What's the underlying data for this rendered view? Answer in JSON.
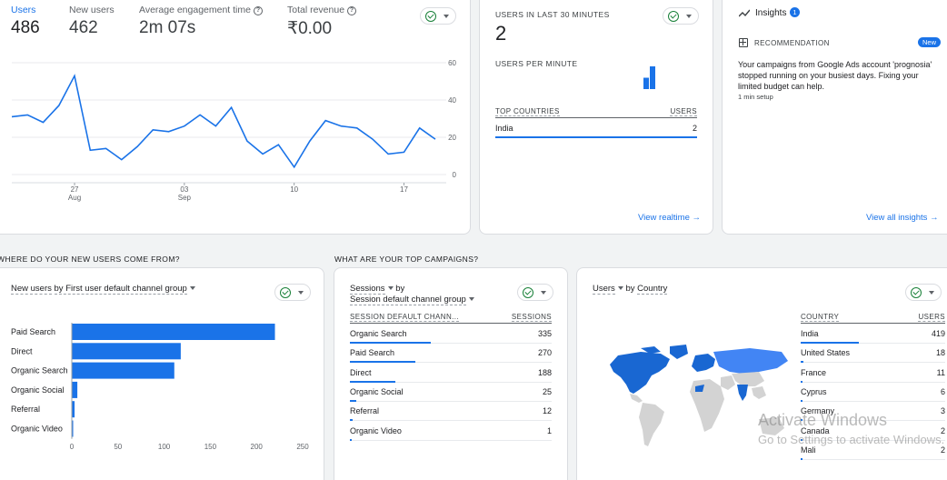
{
  "overview": {
    "metrics": [
      {
        "label": "Users",
        "value": "486"
      },
      {
        "label": "New users",
        "value": "462"
      },
      {
        "label": "Average engagement time",
        "value": "2m 07s"
      },
      {
        "label": "Total revenue",
        "value": "₹0.00"
      }
    ],
    "help_glyph": "?",
    "chart_data": {
      "type": "line",
      "series": [
        {
          "values": [
            31,
            32,
            28,
            37,
            53,
            13,
            14,
            8,
            15,
            24,
            23,
            26,
            32,
            26,
            36,
            18,
            11,
            16,
            4,
            18,
            29,
            26,
            25,
            19,
            11,
            12,
            25,
            19
          ]
        }
      ],
      "y_ticks": [
        "60",
        "40",
        "20",
        "0"
      ],
      "ylim": [
        0,
        60
      ],
      "x_ticks": [
        {
          "day": "27",
          "month": "Aug"
        },
        {
          "day": "03",
          "month": "Sep"
        },
        {
          "day": "10",
          "month": ""
        },
        {
          "day": "17",
          "month": ""
        }
      ],
      "line_color": "#1a73e8",
      "grid": true
    }
  },
  "realtime": {
    "title": "USERS IN LAST 30 MINUTES",
    "value": "2",
    "per_minute_label": "USERS PER MINUTE",
    "per_minute_values": [
      1,
      2
    ],
    "table_headers": {
      "country": "TOP COUNTRIES",
      "users": "USERS"
    },
    "rows": [
      {
        "country": "India",
        "users": "2"
      }
    ],
    "link": "View realtime",
    "arrow": "→"
  },
  "insights": {
    "title": "Insights",
    "badge": "1",
    "recommendation_label": "RECOMMENDATION",
    "new_badge": "New",
    "text": "Your campaigns from Google Ads account 'prognosia' stopped running on your busiest days. Fixing your limited budget can help.",
    "setup": "1 min setup",
    "link": "View all insights",
    "arrow": "→"
  },
  "sections": {
    "new_users_question": "WHERE DO YOUR NEW USERS COME FROM?",
    "campaigns_question": "WHAT ARE YOUR TOP CAMPAIGNS?"
  },
  "new_users": {
    "header_metric": "New users",
    "header_rest": "by First user default channel group",
    "chart_data": {
      "type": "bar",
      "orientation": "horizontal",
      "categories": [
        "Paid Search",
        "Direct",
        "Organic Search",
        "Organic Social",
        "Referral",
        "Organic Video"
      ],
      "values": [
        220,
        118,
        111,
        6,
        3,
        1
      ],
      "x_ticks": [
        "0",
        "50",
        "100",
        "150",
        "200",
        "250"
      ],
      "xlim": [
        0,
        250
      ],
      "bar_color": "#1a73e8"
    }
  },
  "campaigns": {
    "header_metric": "Sessions",
    "header_by": "by",
    "header_dim": "Session default channel group",
    "table_headers": {
      "dim": "SESSION DEFAULT CHANN...",
      "val": "SESSIONS"
    },
    "rows": [
      {
        "label": "Organic Search",
        "value": "335"
      },
      {
        "label": "Paid Search",
        "value": "270"
      },
      {
        "label": "Direct",
        "value": "188"
      },
      {
        "label": "Organic Social",
        "value": "25"
      },
      {
        "label": "Referral",
        "value": "12"
      },
      {
        "label": "Organic Video",
        "value": "1"
      }
    ]
  },
  "country": {
    "header_metric": "Users",
    "header_by": "by",
    "header_dim": "Country",
    "table_headers": {
      "dim": "COUNTRY",
      "val": "USERS"
    },
    "rows": [
      {
        "label": "India",
        "value": "419"
      },
      {
        "label": "United States",
        "value": "18"
      },
      {
        "label": "France",
        "value": "11"
      },
      {
        "label": "Cyprus",
        "value": "6"
      },
      {
        "label": "Germany",
        "value": "3"
      },
      {
        "label": "Canada",
        "value": "2"
      },
      {
        "label": "Mali",
        "value": "2"
      }
    ]
  },
  "watermark": {
    "line1": "Activate Windows",
    "line2": "Go to Settings to activate Windows."
  }
}
